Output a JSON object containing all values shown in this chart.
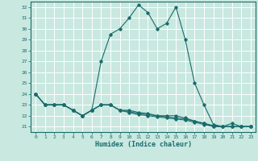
{
  "xlabel": "Humidex (Indice chaleur)",
  "ylabel": "",
  "xlim": [
    -0.5,
    23.5
  ],
  "ylim": [
    20.5,
    32.5
  ],
  "yticks": [
    21,
    22,
    23,
    24,
    25,
    26,
    27,
    28,
    29,
    30,
    31,
    32
  ],
  "xticks": [
    0,
    1,
    2,
    3,
    4,
    5,
    6,
    7,
    8,
    9,
    10,
    11,
    12,
    13,
    14,
    15,
    16,
    17,
    18,
    19,
    20,
    21,
    22,
    23
  ],
  "background_color": "#c8e8e0",
  "grid_color": "#ffffff",
  "line_color": "#1a6b6b",
  "series": [
    [
      24,
      23,
      23,
      23,
      22.5,
      22,
      22.5,
      27,
      29.5,
      30,
      31,
      32.2,
      31.5,
      30,
      30.5,
      32,
      29,
      25,
      23,
      21.2,
      21,
      21.3,
      21,
      21
    ],
    [
      24,
      23,
      23,
      23,
      22.5,
      22,
      22.5,
      23,
      23,
      22.5,
      22.5,
      22.3,
      22.2,
      22,
      22,
      22,
      21.8,
      21.5,
      21.3,
      21,
      21,
      21,
      21,
      21
    ],
    [
      24,
      23,
      23,
      23,
      22.5,
      22,
      22.5,
      23,
      23,
      22.5,
      22.4,
      22.2,
      22.1,
      22,
      21.9,
      21.8,
      21.7,
      21.5,
      21.3,
      21.1,
      21,
      21,
      21,
      21
    ],
    [
      24,
      23,
      23,
      23,
      22.5,
      22,
      22.5,
      23,
      23,
      22.5,
      22.3,
      22.1,
      22.0,
      21.9,
      21.8,
      21.7,
      21.6,
      21.4,
      21.2,
      21.0,
      21,
      21,
      21,
      21
    ]
  ]
}
